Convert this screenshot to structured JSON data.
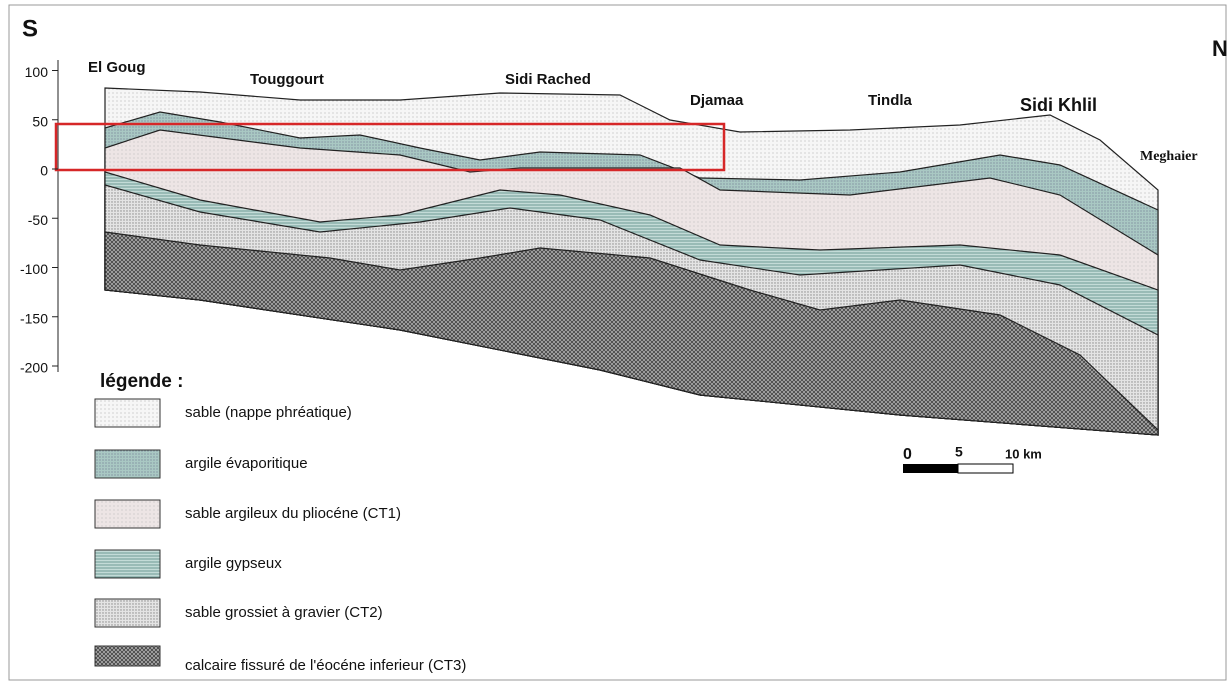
{
  "header": {
    "south": "S",
    "north": "N"
  },
  "depth_axis": {
    "ticks": [
      100,
      50,
      0,
      -50,
      -100,
      -150,
      -200
    ]
  },
  "places": [
    "El Goug",
    "Touggourt",
    "Sidi Rached",
    "Djamaa",
    "Tindla",
    "Sidi Khlil",
    "Meghaier"
  ],
  "legend": {
    "title": "légende :",
    "items": [
      "sable (nappe phréatique)",
      "argile évaporitique",
      "sable argileux du pliocéne (CT1)",
      "argile gypseux",
      "sable grossiet à gravier (CT2)",
      "calcaire fissuré de l'éocéne inferieur (CT3)"
    ]
  },
  "scale": {
    "labels": [
      "0",
      "5",
      "10 km"
    ]
  }
}
